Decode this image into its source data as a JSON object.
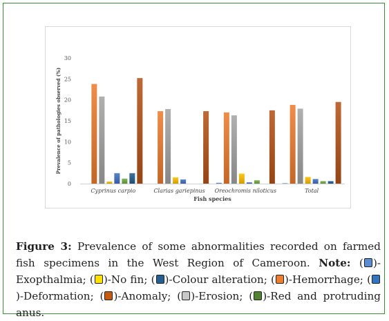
{
  "chart_data": {
    "type": "bar",
    "categories": [
      "Cyprinus carpio",
      "Clarias gariepinus",
      "Oreochromis niloticus",
      "Total"
    ],
    "series": [
      {
        "name": "Exopthalmia",
        "color": "#5b8bd0",
        "values": [
          0,
          0,
          0.2,
          0.1
        ]
      },
      {
        "name": "Hemorrhage",
        "color": "#ed7d31",
        "values": [
          23.8,
          17.3,
          17.0,
          18.8
        ]
      },
      {
        "name": "Erosion",
        "color": "#a5a5a5",
        "values": [
          20.8,
          17.8,
          16.3,
          17.9
        ]
      },
      {
        "name": "No fin",
        "color": "#ffc000",
        "values": [
          0.5,
          1.5,
          2.4,
          1.6
        ]
      },
      {
        "name": "Deformation",
        "color": "#4472c4",
        "values": [
          2.5,
          1.0,
          0.3,
          1.1
        ]
      },
      {
        "name": "Red and protruding anus",
        "color": "#70ad47",
        "values": [
          1.2,
          0,
          0.8,
          0.6
        ]
      },
      {
        "name": "Colour alteration",
        "color": "#255e91",
        "values": [
          2.5,
          0,
          0,
          0.6
        ]
      },
      {
        "name": "Anomaly",
        "color": "#b5541a",
        "values": [
          25.2,
          17.3,
          17.5,
          19.5
        ]
      }
    ],
    "xlabel": "Fish species",
    "ylabel": "Prevalence of pathologies observed (%)",
    "ylim": [
      0,
      30
    ],
    "yticks": [
      "0",
      "5",
      "10",
      "15",
      "20",
      "25",
      "30"
    ],
    "grid": false,
    "legend": "none"
  },
  "caption": {
    "label": "Figure 3:",
    "text1": " Prevalence of some abnormalities recorded on farmed fish specimens in the West Region of Cameroon. ",
    "note": "Note:",
    "items": [
      {
        "open": " (",
        "text": ")-Exopthalmia; ",
        "color": "#5b8bd0"
      },
      {
        "open": "(",
        "text": ")-No fin; ",
        "color": "#ffe000"
      },
      {
        "open": "(",
        "text": ")-Colour alteration; ",
        "color": "#255e91"
      },
      {
        "open": "(",
        "text": ")-Hemorrhage; ",
        "color": "#ed7d31"
      },
      {
        "open": "(",
        "text": ")-Deformation; ",
        "color": "#2f75c0"
      },
      {
        "open": "(",
        "text": ")-Anomaly; ",
        "color": "#c55a11"
      },
      {
        "open": "(",
        "text": ")-Erosion; ",
        "color": "#c8c8c8"
      },
      {
        "open": "(",
        "text": ")-Red and protruding anus.",
        "color": "#548235"
      }
    ]
  }
}
